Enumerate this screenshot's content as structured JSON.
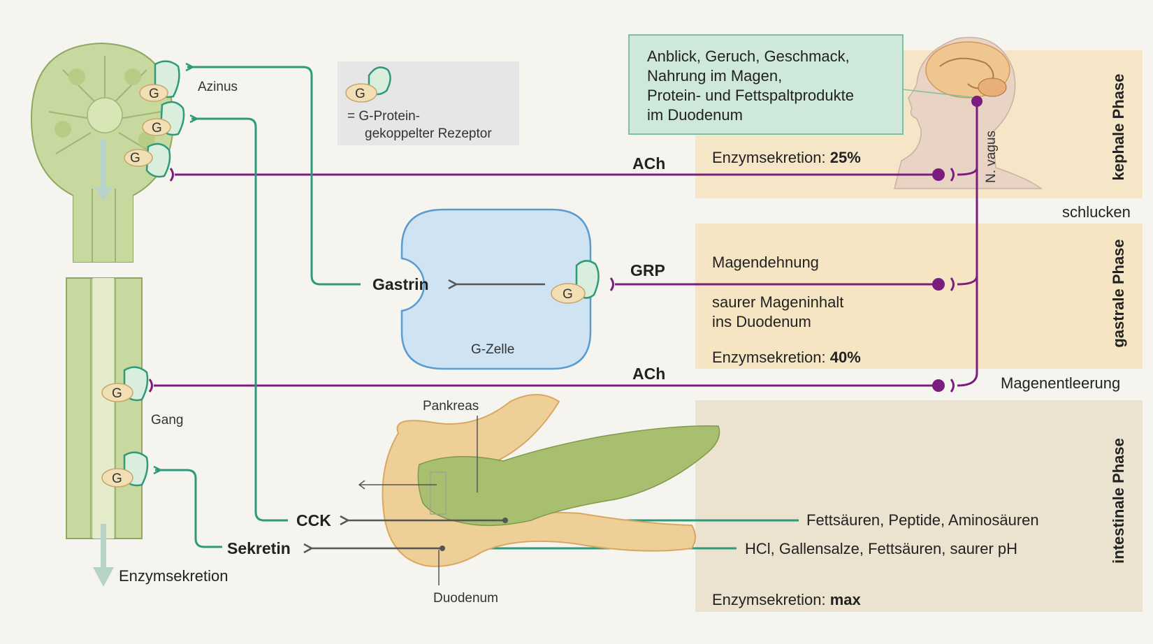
{
  "acinus": {
    "label": "Azinus",
    "duct_label": "Gang",
    "output_label": "Enzymsekretion",
    "receptor_letter": "G"
  },
  "legend": {
    "letter": "G",
    "line1": "= G-Protein-",
    "line2": "gekoppelter Rezeptor"
  },
  "gcell": {
    "label": "G-Zelle",
    "hormone": "Gastrin",
    "receptor_letter": "G"
  },
  "signals": {
    "ach_top": "ACh",
    "grp": "GRP",
    "ach_mid": "ACh",
    "cck": "CCK",
    "sekretin": "Sekretin"
  },
  "pancreas": {
    "pankreas_label": "Pankreas",
    "duodenum_label": "Duodenum"
  },
  "stimuli_box": {
    "line1": "Anblick, Geruch, Geschmack,",
    "line2": "Nahrung im Magen,",
    "line3": "Protein- und Fettspaltprodukte",
    "line4": "im Duodenum"
  },
  "nerve": {
    "label": "N. vagus"
  },
  "phases": {
    "kephal": {
      "name": "kephale Phase",
      "enzyme_prefix": "Enzymsekretion: ",
      "enzyme_value": "25%"
    },
    "gastral": {
      "name": "gastrale Phase",
      "stim1": "Magendehnung",
      "stim2a": "saurer Mageninhalt",
      "stim2b": "ins Duodenum",
      "enzyme_prefix": "Enzymsekretion: ",
      "enzyme_value": "40%"
    },
    "intestinal": {
      "name": "intestinale Phase",
      "stim_cck": "Fettsäuren, Peptide, Aminosäuren",
      "stim_sek": "HCl, Gallensalze, Fettsäuren, saurer pH",
      "enzyme_prefix": "Enzymsekretion: ",
      "enzyme_value": "max"
    }
  },
  "transitions": {
    "schlucken": "schlucken",
    "magenentleerung": "Magenentleerung"
  },
  "colors": {
    "vagus": "#7b1d7e",
    "hormone": "#2e9a7a",
    "arrow": "#555555",
    "phase_bg": "#f5e6c8",
    "box_bg": "#cfe8dc",
    "gcell_bg": "#cfe3f3"
  }
}
